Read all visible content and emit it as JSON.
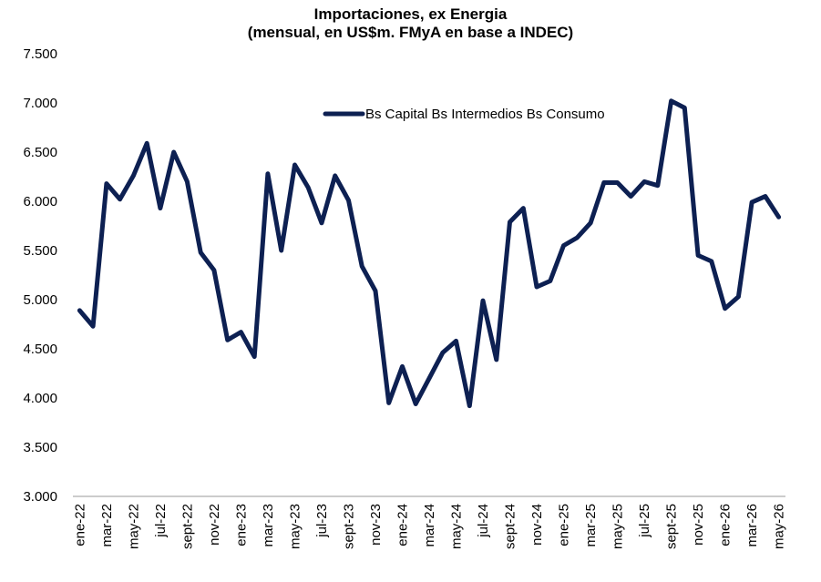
{
  "chart_data": {
    "type": "line",
    "title": "Importaciones, ex Energia",
    "subtitle": "(mensual, en US$m. FMyA en base a INDEC)",
    "xlabel": "",
    "ylabel": "",
    "ylim": [
      3000,
      7500
    ],
    "y_ticks": [
      3000,
      3500,
      4000,
      4500,
      5000,
      5500,
      6000,
      6500,
      7000,
      7500
    ],
    "y_tick_labels": [
      "3.000",
      "3.500",
      "4.000",
      "4.500",
      "5.000",
      "5.500",
      "6.000",
      "6.500",
      "7.000",
      "7.500"
    ],
    "x_tick_labels": [
      "ene-22",
      "mar-22",
      "may-22",
      "jul-22",
      "sept-22",
      "nov-22",
      "ene-23",
      "mar-23",
      "may-23",
      "jul-23",
      "sept-23",
      "nov-23",
      "ene-24",
      "mar-24",
      "may-24",
      "jul-24",
      "sept-24",
      "nov-24",
      "ene-25",
      "mar-25",
      "may-25",
      "jul-25",
      "sept-25",
      "nov-25",
      "ene-26",
      "mar-26",
      "may-26"
    ],
    "grid": false,
    "legend_position": "top-right",
    "series": [
      {
        "name": "Bs Capital Bs Intermedios Bs Consumo",
        "color": "#0d2052",
        "values": [
          4890,
          4730,
          6180,
          6020,
          6260,
          6590,
          5930,
          6500,
          6200,
          5480,
          5300,
          4590,
          4670,
          4420,
          6280,
          5500,
          6370,
          6140,
          5780,
          6260,
          6010,
          5340,
          5090,
          3950,
          4320,
          3940,
          4200,
          4460,
          4580,
          3920,
          4990,
          4390,
          5790,
          5930,
          5130,
          5190,
          5550,
          5630,
          5780,
          6190,
          6190,
          6050,
          6200,
          6160,
          7020,
          6950,
          5450,
          5390,
          4910,
          5030,
          5990,
          6050,
          5840
        ]
      }
    ]
  }
}
